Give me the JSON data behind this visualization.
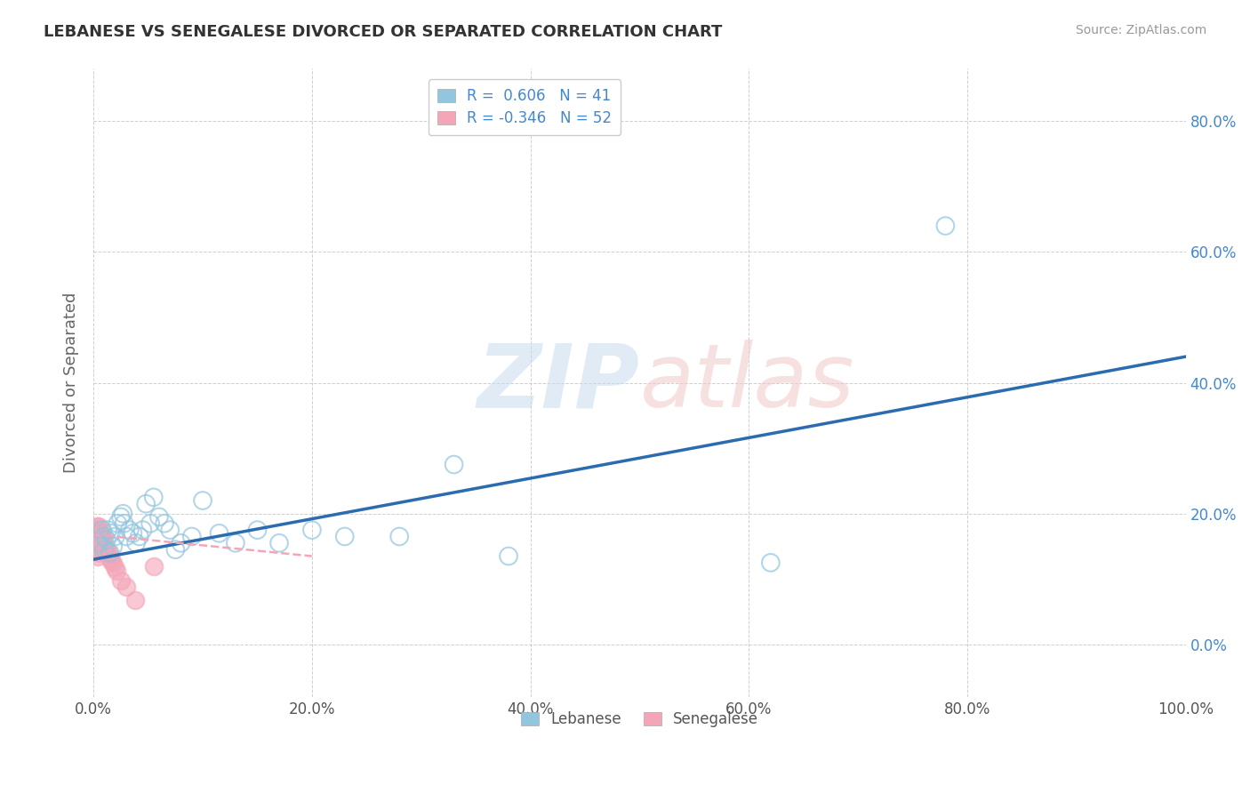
{
  "title": "LEBANESE VS SENEGALESE DIVORCED OR SEPARATED CORRELATION CHART",
  "source_text": "Source: ZipAtlas.com",
  "ylabel": "Divorced or Separated",
  "legend_r": [
    0.606,
    -0.346
  ],
  "legend_n": [
    41,
    52
  ],
  "scatter_color_lebanese": "#92C5DE",
  "scatter_color_senegalese": "#F4A6B8",
  "line_color_lebanese": "#2B6CB0",
  "line_color_senegalese": "#F4A6B8",
  "background_color": "#FFFFFF",
  "grid_color": "#BBBBBB",
  "xlim": [
    0.0,
    1.0
  ],
  "ylim": [
    -0.08,
    0.88
  ],
  "xticks": [
    0.0,
    0.2,
    0.4,
    0.6,
    0.8,
    1.0
  ],
  "yticks": [
    0.0,
    0.2,
    0.4,
    0.6,
    0.8
  ],
  "xticklabels": [
    "0.0%",
    "20.0%",
    "40.0%",
    "60.0%",
    "80.0%",
    "100.0%"
  ],
  "yticklabels": [
    "0.0%",
    "20.0%",
    "40.0%",
    "60.0%",
    "80.0%"
  ],
  "lebanese_x": [
    0.005,
    0.008,
    0.01,
    0.01,
    0.012,
    0.013,
    0.015,
    0.016,
    0.018,
    0.02,
    0.022,
    0.025,
    0.027,
    0.028,
    0.03,
    0.033,
    0.036,
    0.039,
    0.042,
    0.045,
    0.048,
    0.052,
    0.055,
    0.06,
    0.065,
    0.07,
    0.075,
    0.08,
    0.09,
    0.1,
    0.115,
    0.13,
    0.15,
    0.17,
    0.2,
    0.23,
    0.28,
    0.33,
    0.38,
    0.62,
    0.78
  ],
  "lebanese_y": [
    0.155,
    0.175,
    0.145,
    0.165,
    0.16,
    0.175,
    0.14,
    0.17,
    0.15,
    0.165,
    0.185,
    0.195,
    0.2,
    0.185,
    0.165,
    0.175,
    0.17,
    0.155,
    0.165,
    0.175,
    0.215,
    0.185,
    0.225,
    0.195,
    0.185,
    0.175,
    0.145,
    0.155,
    0.165,
    0.22,
    0.17,
    0.155,
    0.175,
    0.155,
    0.175,
    0.165,
    0.165,
    0.275,
    0.135,
    0.125,
    0.64
  ],
  "senegalese_x": [
    0.002,
    0.002,
    0.002,
    0.002,
    0.003,
    0.003,
    0.003,
    0.003,
    0.003,
    0.003,
    0.003,
    0.004,
    0.004,
    0.004,
    0.004,
    0.004,
    0.004,
    0.004,
    0.005,
    0.005,
    0.005,
    0.005,
    0.005,
    0.005,
    0.005,
    0.005,
    0.006,
    0.006,
    0.006,
    0.007,
    0.007,
    0.007,
    0.007,
    0.008,
    0.008,
    0.009,
    0.009,
    0.01,
    0.01,
    0.011,
    0.012,
    0.013,
    0.014,
    0.015,
    0.016,
    0.018,
    0.019,
    0.021,
    0.025,
    0.03,
    0.038,
    0.055
  ],
  "senegalese_y": [
    0.155,
    0.165,
    0.17,
    0.175,
    0.145,
    0.155,
    0.16,
    0.165,
    0.17,
    0.175,
    0.18,
    0.135,
    0.145,
    0.15,
    0.16,
    0.165,
    0.17,
    0.175,
    0.14,
    0.15,
    0.155,
    0.16,
    0.165,
    0.17,
    0.175,
    0.18,
    0.145,
    0.155,
    0.165,
    0.145,
    0.155,
    0.16,
    0.17,
    0.145,
    0.165,
    0.15,
    0.16,
    0.148,
    0.155,
    0.148,
    0.14,
    0.142,
    0.138,
    0.132,
    0.128,
    0.125,
    0.118,
    0.112,
    0.098,
    0.088,
    0.068,
    0.12
  ],
  "lebanese_line_x": [
    0.0,
    1.0
  ],
  "lebanese_line_y": [
    0.13,
    0.44
  ],
  "senegalese_line_x": [
    0.0,
    0.2
  ],
  "senegalese_line_y": [
    0.168,
    0.135
  ]
}
